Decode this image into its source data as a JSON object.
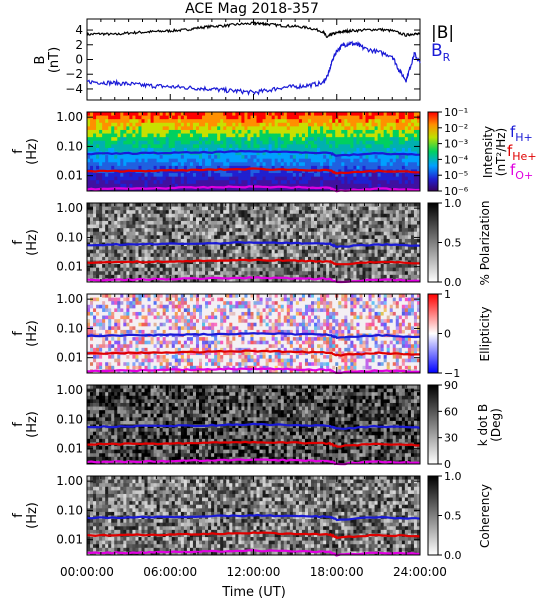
{
  "chart_data": [
    {
      "type": "line",
      "title": "ACE Mag 2018-357",
      "ylabel": "B (nT)",
      "ylim": [
        -5.5,
        5.5
      ],
      "yticks": [
        4,
        2,
        0,
        -2,
        -4
      ],
      "xlim_hours": [
        0,
        24
      ],
      "legend": {
        "position": "right",
        "entries": [
          "|B|",
          "B_R"
        ]
      },
      "series": [
        {
          "name": "|B|",
          "color": "#000000",
          "x": [
            0,
            1,
            2,
            3,
            4,
            5,
            6,
            7,
            8,
            9,
            10,
            11,
            12,
            12.5,
            13,
            14,
            15,
            16,
            17,
            17.3,
            17.6,
            18,
            18.5,
            19,
            20,
            21,
            22,
            23,
            23.5,
            24
          ],
          "y": [
            3.4,
            3.5,
            3.4,
            3.6,
            3.7,
            3.8,
            3.9,
            4.0,
            4.3,
            4.5,
            4.6,
            4.8,
            4.9,
            4.9,
            4.8,
            4.6,
            4.5,
            4.3,
            3.8,
            3.0,
            3.4,
            3.6,
            3.8,
            3.9,
            4.0,
            4.1,
            3.9,
            3.3,
            3.5,
            3.4
          ]
        },
        {
          "name": "B_R",
          "color": "#1a1ad6",
          "x": [
            0,
            1,
            2,
            3,
            4,
            5,
            6,
            7,
            8,
            9,
            10,
            11,
            12,
            13,
            14,
            15,
            16,
            17,
            17.4,
            17.7,
            18,
            18.5,
            19,
            19.5,
            20,
            21,
            22,
            22.5,
            23,
            23.3,
            23.6,
            24
          ],
          "y": [
            -3.0,
            -3.1,
            -3.2,
            -3.3,
            -3.5,
            -3.6,
            -3.7,
            -3.8,
            -3.9,
            -4.0,
            -4.2,
            -4.3,
            -4.5,
            -4.2,
            -3.8,
            -3.7,
            -3.5,
            -3.2,
            -2.0,
            0.0,
            1.2,
            2.0,
            2.2,
            2.0,
            1.5,
            1.0,
            0.5,
            -1.5,
            -2.8,
            -1.0,
            0.8,
            -0.5
          ]
        }
      ]
    },
    {
      "type": "heatmap",
      "ylabel": "f (Hz)",
      "yscale": "log",
      "ylim": [
        0.003,
        1.5
      ],
      "yticks": [
        "1.00",
        "0.10",
        "0.01"
      ],
      "colorbar": {
        "label": "Intensity (nT²/Hz)",
        "colorscale": "rainbow",
        "ticks": [
          "10⁻¹",
          "10⁻²",
          "10⁻³",
          "10⁻⁴",
          "10⁻⁵",
          "10⁻⁶"
        ]
      },
      "legend": {
        "position": "right",
        "entries": [
          "f_H+",
          "f_He+",
          "f_O+"
        ]
      },
      "series": [
        {
          "name": "f_H+",
          "color": "#1a1ad6",
          "x": [
            0,
            3,
            6,
            9,
            12,
            15,
            17.5,
            18,
            21,
            24
          ],
          "y": [
            0.055,
            0.058,
            0.06,
            0.063,
            0.068,
            0.064,
            0.06,
            0.048,
            0.058,
            0.052
          ]
        },
        {
          "name": "f_He+",
          "color": "#e00000",
          "x": [
            0,
            3,
            6,
            9,
            12,
            15,
            17.5,
            18,
            21,
            24
          ],
          "y": [
            0.014,
            0.0145,
            0.015,
            0.016,
            0.017,
            0.016,
            0.015,
            0.012,
            0.0145,
            0.013
          ]
        },
        {
          "name": "f_O+",
          "color": "#e000e0",
          "x": [
            0,
            3,
            6,
            9,
            12,
            15,
            17.5,
            18,
            21,
            24
          ],
          "y": [
            0.0035,
            0.0036,
            0.0038,
            0.004,
            0.0042,
            0.004,
            0.0038,
            0.003,
            0.0036,
            0.0033
          ]
        }
      ]
    },
    {
      "type": "heatmap",
      "ylabel": "f (Hz)",
      "yscale": "log",
      "yticks": [
        "1.00",
        "0.10",
        "0.01"
      ],
      "colorbar": {
        "label": "% Polarization",
        "colorscale": "gray",
        "ticks": [
          "1.0",
          "0.5",
          "0.0"
        ]
      }
    },
    {
      "type": "heatmap",
      "ylabel": "f (Hz)",
      "yscale": "log",
      "yticks": [
        "1.00",
        "0.10",
        "0.01"
      ],
      "colorbar": {
        "label": "Ellipticity",
        "colorscale": "blue-white-red",
        "ticks": [
          "1",
          "0",
          "−1"
        ]
      }
    },
    {
      "type": "heatmap",
      "ylabel": "f (Hz)",
      "yscale": "log",
      "yticks": [
        "1.00",
        "0.10",
        "0.01"
      ],
      "colorbar": {
        "label": "k dot B (Deg)",
        "colorscale": "gray",
        "ticks": [
          "90",
          "60",
          "30",
          "0"
        ]
      }
    },
    {
      "type": "heatmap",
      "ylabel": "f (Hz)",
      "yscale": "log",
      "yticks": [
        "1.00",
        "0.10",
        "0.01"
      ],
      "xlabel": "Time (UT)",
      "xticks": [
        "00:00:00",
        "06:00:00",
        "12:00:00",
        "18:00:00",
        "24:00:00"
      ],
      "colorbar": {
        "label": "Coherency",
        "colorscale": "gray",
        "ticks": [
          "1.0",
          "0.5",
          "0.0"
        ]
      }
    }
  ],
  "labels": {
    "title": "ACE Mag 2018-357",
    "b_axis": "B",
    "b_unit": "(nT)",
    "f_axis": "f",
    "f_unit": "(Hz)",
    "b_legend_mag": "|B|",
    "b_legend_r": "B",
    "b_legend_r_sub": "R",
    "fh": "f",
    "fh_sub": "H+",
    "fhe": "f",
    "fhe_sub": "He+",
    "fo": "f",
    "fo_sub": "O+",
    "cb_intensity_1": "Intensity",
    "cb_intensity_2": "(nT²/Hz)",
    "cb_pol": "% Polarization",
    "cb_ell": "Ellipticity",
    "cb_kb_1": "k dot B",
    "cb_kb_2": "(Deg)",
    "cb_coh": "Coherency",
    "xlabel": "Time (UT)"
  },
  "colors": {
    "bmag": "#000000",
    "br": "#1a1ad6",
    "fh": "#1a1ad6",
    "fhe": "#e00000",
    "fo": "#e000e0"
  }
}
